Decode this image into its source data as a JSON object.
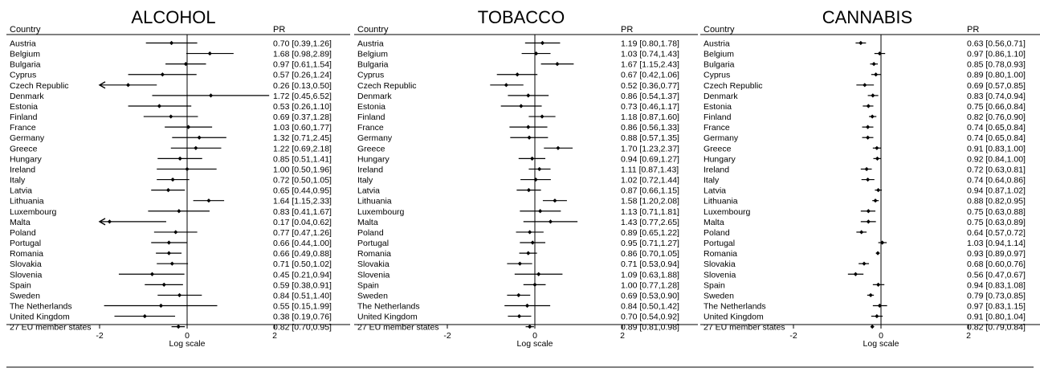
{
  "chart_data": [
    {
      "type": "forest",
      "title": "ALCOHOL",
      "column_headers": {
        "country": "Country",
        "pr": "PR"
      },
      "xlabel": "Log scale",
      "xticks": [
        -2,
        0,
        2
      ],
      "xlim": [
        -2.0,
        2.0
      ],
      "rows": [
        {
          "country": "Austria",
          "pr": "0.70 [0.39,1.26]",
          "est": 0.7,
          "lo": 0.39,
          "hi": 1.26
        },
        {
          "country": "Belgium",
          "pr": "1.68 [0.98,2.89]",
          "est": 1.68,
          "lo": 0.98,
          "hi": 2.89
        },
        {
          "country": "Bulgaria",
          "pr": "0.97 [0.61,1.54]",
          "est": 0.97,
          "lo": 0.61,
          "hi": 1.54
        },
        {
          "country": "Cyprus",
          "pr": "0.57 [0.26,1.24]",
          "est": 0.57,
          "lo": 0.26,
          "hi": 1.24
        },
        {
          "country": "Czech Republic",
          "pr": "0.26 [0.13,0.50]",
          "est": 0.26,
          "lo": 0.13,
          "hi": 0.5
        },
        {
          "country": "Denmark",
          "pr": "1.72 [0.45,6.52]",
          "est": 1.72,
          "lo": 0.45,
          "hi": 6.52
        },
        {
          "country": "Estonia",
          "pr": "0.53 [0.26,1.10]",
          "est": 0.53,
          "lo": 0.26,
          "hi": 1.1
        },
        {
          "country": "Finland",
          "pr": "0.69 [0.37,1.28]",
          "est": 0.69,
          "lo": 0.37,
          "hi": 1.28
        },
        {
          "country": "France",
          "pr": "1.03 [0.60,1.77]",
          "est": 1.03,
          "lo": 0.6,
          "hi": 1.77
        },
        {
          "country": "Germany",
          "pr": "1.32 [0.71,2.45]",
          "est": 1.32,
          "lo": 0.71,
          "hi": 2.45
        },
        {
          "country": "Greece",
          "pr": "1.22 [0.69,2.18]",
          "est": 1.22,
          "lo": 0.69,
          "hi": 2.18
        },
        {
          "country": "Hungary",
          "pr": "0.85 [0.51,1.41]",
          "est": 0.85,
          "lo": 0.51,
          "hi": 1.41
        },
        {
          "country": "Ireland",
          "pr": "1.00 [0.50,1.96]",
          "est": 1.0,
          "lo": 0.5,
          "hi": 1.96
        },
        {
          "country": "Italy",
          "pr": "0.72 [0.50,1.05]",
          "est": 0.72,
          "lo": 0.5,
          "hi": 1.05
        },
        {
          "country": "Latvia",
          "pr": "0.65 [0.44,0.95]",
          "est": 0.65,
          "lo": 0.44,
          "hi": 0.95
        },
        {
          "country": "Lithuania",
          "pr": "1.64 [1.15,2.33]",
          "est": 1.64,
          "lo": 1.15,
          "hi": 2.33
        },
        {
          "country": "Luxembourg",
          "pr": "0.83 [0.41,1.67]",
          "est": 0.83,
          "lo": 0.41,
          "hi": 1.67
        },
        {
          "country": "Malta",
          "pr": "0.17 [0.04,0.62]",
          "est": 0.17,
          "lo": 0.04,
          "hi": 0.62
        },
        {
          "country": "Poland",
          "pr": "0.77 [0.47,1.26]",
          "est": 0.77,
          "lo": 0.47,
          "hi": 1.26
        },
        {
          "country": "Portugal",
          "pr": "0.66 [0.44,1.00]",
          "est": 0.66,
          "lo": 0.44,
          "hi": 1.0
        },
        {
          "country": "Romania",
          "pr": "0.66 [0.49,0.88]",
          "est": 0.66,
          "lo": 0.49,
          "hi": 0.88
        },
        {
          "country": "Slovakia",
          "pr": "0.71 [0.50,1.02]",
          "est": 0.71,
          "lo": 0.5,
          "hi": 1.02
        },
        {
          "country": "Slovenia",
          "pr": "0.45 [0.21,0.94]",
          "est": 0.45,
          "lo": 0.21,
          "hi": 0.94
        },
        {
          "country": "Spain",
          "pr": "0.59 [0.38,0.91]",
          "est": 0.59,
          "lo": 0.38,
          "hi": 0.91
        },
        {
          "country": "Sweden",
          "pr": "0.84 [0.51,1.40]",
          "est": 0.84,
          "lo": 0.51,
          "hi": 1.4
        },
        {
          "country": "The Netherlands",
          "pr": "0.55 [0.15,1.99]",
          "est": 0.55,
          "lo": 0.15,
          "hi": 1.99
        },
        {
          "country": "United Kingdom",
          "pr": "0.38 [0.19,0.76]",
          "est": 0.38,
          "lo": 0.19,
          "hi": 0.76
        },
        {
          "country": "27 EU member states",
          "pr": "0.82 [0.70,0.95]",
          "est": 0.82,
          "lo": 0.7,
          "hi": 0.95
        }
      ]
    },
    {
      "type": "forest",
      "title": "TOBACCO",
      "column_headers": {
        "country": "Country",
        "pr": "PR"
      },
      "xlabel": "Log scale",
      "xticks": [
        -2,
        0,
        2
      ],
      "xlim": [
        -2.0,
        2.0
      ],
      "rows": [
        {
          "country": "Austria",
          "pr": "1.19 [0.80,1.78]",
          "est": 1.19,
          "lo": 0.8,
          "hi": 1.78
        },
        {
          "country": "Belgium",
          "pr": "1.03 [0.74,1.43]",
          "est": 1.03,
          "lo": 0.74,
          "hi": 1.43
        },
        {
          "country": "Bulgaria",
          "pr": "1.67 [1.15,2.43]",
          "est": 1.67,
          "lo": 1.15,
          "hi": 2.43
        },
        {
          "country": "Cyprus",
          "pr": "0.67 [0.42,1.06]",
          "est": 0.67,
          "lo": 0.42,
          "hi": 1.06
        },
        {
          "country": "Czech Republic",
          "pr": "0.52 [0.36,0.77]",
          "est": 0.52,
          "lo": 0.36,
          "hi": 0.77
        },
        {
          "country": "Denmark",
          "pr": "0.86 [0.54,1.37]",
          "est": 0.86,
          "lo": 0.54,
          "hi": 1.37
        },
        {
          "country": "Estonia",
          "pr": "0.73 [0.46,1.17]",
          "est": 0.73,
          "lo": 0.46,
          "hi": 1.17
        },
        {
          "country": "Finland",
          "pr": "1.18 [0.87,1.60]",
          "est": 1.18,
          "lo": 0.87,
          "hi": 1.6
        },
        {
          "country": "France",
          "pr": "0.86 [0.56,1.33]",
          "est": 0.86,
          "lo": 0.56,
          "hi": 1.33
        },
        {
          "country": "Germany",
          "pr": "0.88 [0.57,1.35]",
          "est": 0.88,
          "lo": 0.57,
          "hi": 1.35
        },
        {
          "country": "Greece",
          "pr": "1.70 [1.23,2.37]",
          "est": 1.7,
          "lo": 1.23,
          "hi": 2.37
        },
        {
          "country": "Hungary",
          "pr": "0.94 [0.69,1.27]",
          "est": 0.94,
          "lo": 0.69,
          "hi": 1.27
        },
        {
          "country": "Ireland",
          "pr": "1.11 [0.87,1.43]",
          "est": 1.11,
          "lo": 0.87,
          "hi": 1.43
        },
        {
          "country": "Italy",
          "pr": "1.02 [0.72,1.44]",
          "est": 1.02,
          "lo": 0.72,
          "hi": 1.44
        },
        {
          "country": "Latvia",
          "pr": "0.87 [0.66,1.15]",
          "est": 0.87,
          "lo": 0.66,
          "hi": 1.15
        },
        {
          "country": "Lithuania",
          "pr": "1.58 [1.20,2.08]",
          "est": 1.58,
          "lo": 1.2,
          "hi": 2.08
        },
        {
          "country": "Luxembourg",
          "pr": "1.13 [0.71,1.81]",
          "est": 1.13,
          "lo": 0.71,
          "hi": 1.81
        },
        {
          "country": "Malta",
          "pr": "1.43 [0.77,2.65]",
          "est": 1.43,
          "lo": 0.77,
          "hi": 2.65
        },
        {
          "country": "Poland",
          "pr": "0.89 [0.65,1.22]",
          "est": 0.89,
          "lo": 0.65,
          "hi": 1.22
        },
        {
          "country": "Portugal",
          "pr": "0.95 [0.71,1.27]",
          "est": 0.95,
          "lo": 0.71,
          "hi": 1.27
        },
        {
          "country": "Romania",
          "pr": "0.86 [0.70,1.05]",
          "est": 0.86,
          "lo": 0.7,
          "hi": 1.05
        },
        {
          "country": "Slovakia",
          "pr": "0.71 [0.53,0.94]",
          "est": 0.71,
          "lo": 0.53,
          "hi": 0.94
        },
        {
          "country": "Slovenia",
          "pr": "1.09 [0.63,1.88]",
          "est": 1.09,
          "lo": 0.63,
          "hi": 1.88
        },
        {
          "country": "Spain",
          "pr": "1.00 [0.77,1.28]",
          "est": 1.0,
          "lo": 0.77,
          "hi": 1.28
        },
        {
          "country": "Sweden",
          "pr": "0.69 [0.53,0.90]",
          "est": 0.69,
          "lo": 0.53,
          "hi": 0.9
        },
        {
          "country": "The Netherlands",
          "pr": "0.84 [0.50,1.42]",
          "est": 0.84,
          "lo": 0.5,
          "hi": 1.42
        },
        {
          "country": "United Kingdom",
          "pr": "0.70 [0.54,0.92]",
          "est": 0.7,
          "lo": 0.54,
          "hi": 0.92
        },
        {
          "country": "27 EU member states",
          "pr": "0.89 [0.81,0.98]",
          "est": 0.89,
          "lo": 0.81,
          "hi": 0.98
        }
      ]
    },
    {
      "type": "forest",
      "title": "CANNABIS",
      "column_headers": {
        "country": "Country",
        "pr": "PR"
      },
      "xlabel": "Log scale",
      "xticks": [
        -2,
        0,
        2
      ],
      "xlim": [
        -2.0,
        2.0
      ],
      "rows": [
        {
          "country": "Austria",
          "pr": "0.63 [0.56,0.71]",
          "est": 0.63,
          "lo": 0.56,
          "hi": 0.71
        },
        {
          "country": "Belgium",
          "pr": "0.97 [0.86,1.10]",
          "est": 0.97,
          "lo": 0.86,
          "hi": 1.1
        },
        {
          "country": "Bulgaria",
          "pr": "0.85 [0.78,0.93]",
          "est": 0.85,
          "lo": 0.78,
          "hi": 0.93
        },
        {
          "country": "Cyprus",
          "pr": "0.89 [0.80,1.00]",
          "est": 0.89,
          "lo": 0.8,
          "hi": 1.0
        },
        {
          "country": "Czech Republic",
          "pr": "0.69 [0.57,0.85]",
          "est": 0.69,
          "lo": 0.57,
          "hi": 0.85
        },
        {
          "country": "Denmark",
          "pr": "0.83 [0.74,0.94]",
          "est": 0.83,
          "lo": 0.74,
          "hi": 0.94
        },
        {
          "country": "Estonia",
          "pr": "0.75 [0.66,0.84]",
          "est": 0.75,
          "lo": 0.66,
          "hi": 0.84
        },
        {
          "country": "Finland",
          "pr": "0.82 [0.76,0.90]",
          "est": 0.82,
          "lo": 0.76,
          "hi": 0.9
        },
        {
          "country": "France",
          "pr": "0.74 [0.65,0.84]",
          "est": 0.74,
          "lo": 0.65,
          "hi": 0.84
        },
        {
          "country": "Germany",
          "pr": "0.74 [0.65,0.84]",
          "est": 0.74,
          "lo": 0.65,
          "hi": 0.84
        },
        {
          "country": "Greece",
          "pr": "0.91 [0.83,1.00]",
          "est": 0.91,
          "lo": 0.83,
          "hi": 1.0
        },
        {
          "country": "Hungary",
          "pr": "0.92 [0.84,1.00]",
          "est": 0.92,
          "lo": 0.84,
          "hi": 1.0
        },
        {
          "country": "Ireland",
          "pr": "0.72 [0.63,0.81]",
          "est": 0.72,
          "lo": 0.63,
          "hi": 0.81
        },
        {
          "country": "Italy",
          "pr": "0.74 [0.64,0.86]",
          "est": 0.74,
          "lo": 0.64,
          "hi": 0.86
        },
        {
          "country": "Latvia",
          "pr": "0.94 [0.87,1.02]",
          "est": 0.94,
          "lo": 0.87,
          "hi": 1.02
        },
        {
          "country": "Lithuania",
          "pr": "0.88 [0.82,0.95]",
          "est": 0.88,
          "lo": 0.82,
          "hi": 0.95
        },
        {
          "country": "Luxembourg",
          "pr": "0.75 [0.63,0.88]",
          "est": 0.75,
          "lo": 0.63,
          "hi": 0.88
        },
        {
          "country": "Malta",
          "pr": "0.75 [0.63,0.89]",
          "est": 0.75,
          "lo": 0.63,
          "hi": 0.89
        },
        {
          "country": "Poland",
          "pr": "0.64 [0.57,0.72]",
          "est": 0.64,
          "lo": 0.57,
          "hi": 0.72
        },
        {
          "country": "Portugal",
          "pr": "1.03 [0.94,1.14]",
          "est": 1.03,
          "lo": 0.94,
          "hi": 1.14
        },
        {
          "country": "Romania",
          "pr": "0.93 [0.89,0.97]",
          "est": 0.93,
          "lo": 0.89,
          "hi": 0.97
        },
        {
          "country": "Slovakia",
          "pr": "0.68 [0.60,0.76]",
          "est": 0.68,
          "lo": 0.6,
          "hi": 0.76
        },
        {
          "country": "Slovenia",
          "pr": "0.56 [0.47,0.67]",
          "est": 0.56,
          "lo": 0.47,
          "hi": 0.67
        },
        {
          "country": "Spain",
          "pr": "0.94 [0.83,1.08]",
          "est": 0.94,
          "lo": 0.83,
          "hi": 1.08
        },
        {
          "country": "Sweden",
          "pr": "0.79 [0.73,0.85]",
          "est": 0.79,
          "lo": 0.73,
          "hi": 0.85
        },
        {
          "country": "The Netherlands",
          "pr": "0.97 [0.83,1.15]",
          "est": 0.97,
          "lo": 0.83,
          "hi": 1.15
        },
        {
          "country": "United Kingdom",
          "pr": "0.91 [0.80,1.04]",
          "est": 0.91,
          "lo": 0.8,
          "hi": 1.04
        },
        {
          "country": "27 EU member states",
          "pr": "0.82 [0.79,0.84]",
          "est": 0.82,
          "lo": 0.79,
          "hi": 0.84
        }
      ]
    }
  ]
}
